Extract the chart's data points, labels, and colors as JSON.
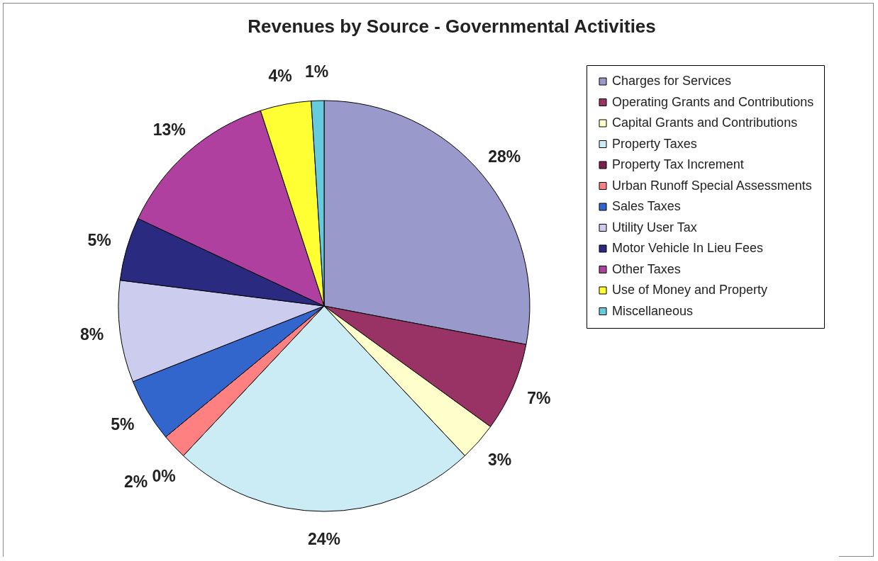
{
  "chart_data": {
    "type": "pie",
    "title": "Revenues by Source - Governmental Activities",
    "categories": [
      "Charges for Services",
      "Operating Grants and Contributions",
      "Capital Grants and Contributions",
      "Property Taxes",
      "Property Tax Increment",
      "Urban Runoff Special Assessments",
      "Sales Taxes",
      "Utility User Tax",
      "Motor Vehicle In Lieu Fees",
      "Other Taxes",
      "Use of Money and Property",
      "Miscellaneous"
    ],
    "values": [
      28,
      7,
      3,
      24,
      0,
      2,
      5,
      8,
      5,
      13,
      4,
      1
    ],
    "value_labels": [
      "28%",
      "7%",
      "3%",
      "24%",
      "0%",
      "2%",
      "5%",
      "8%",
      "5%",
      "13%",
      "4%",
      "1%"
    ],
    "colors": [
      "#9999cc",
      "#993366",
      "#ffffcc",
      "#ccecf5",
      "#802050",
      "#ff8080",
      "#3366cc",
      "#ccccee",
      "#2a2a80",
      "#b040a0",
      "#ffff33",
      "#66ccdd"
    ],
    "legend": "right"
  }
}
